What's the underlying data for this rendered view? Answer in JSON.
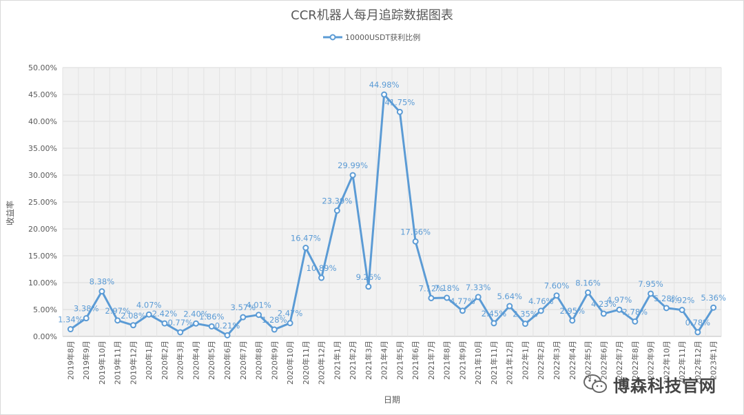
{
  "chart_data": {
    "type": "line",
    "title": "CCR机器人每月追踪数据图表",
    "xlabel": "日期",
    "ylabel": "收益率",
    "ylim": [
      0,
      50
    ],
    "yticks": [
      "0.00%",
      "5.00%",
      "10.00%",
      "15.00%",
      "20.00%",
      "25.00%",
      "30.00%",
      "35.00%",
      "40.00%",
      "45.00%",
      "50.00%"
    ],
    "grid": true,
    "legend_position": "top",
    "categories": [
      "2019年8月",
      "2019年9月",
      "2019年10月",
      "2019年11月",
      "2019年12月",
      "2020年1月",
      "2020年2月",
      "2020年3月",
      "2020年4月",
      "2020年5月",
      "2020年6月",
      "2020年7月",
      "2020年8月",
      "2020年9月",
      "2020年10月",
      "2020年11月",
      "2020年12月",
      "2021年1月",
      "2021年2月",
      "2021年3月",
      "2021年4月",
      "2021年5月",
      "2021年6月",
      "2021年7月",
      "2021年8月",
      "2021年9月",
      "2021年10月",
      "2021年11月",
      "2021年12月",
      "2022年1月",
      "2022年2月",
      "2022年3月",
      "2022年4月",
      "2022年5月",
      "2022年6月",
      "2022年7月",
      "2022年8月",
      "2022年9月",
      "2022年10月",
      "2022年11月",
      "2022年12月",
      "2023年1月"
    ],
    "series": [
      {
        "name": "10000USDT获利比例",
        "color": "#5b9bd5",
        "values": [
          1.34,
          3.38,
          8.38,
          2.97,
          2.08,
          4.07,
          2.42,
          0.77,
          2.4,
          1.86,
          0.21,
          3.57,
          4.01,
          1.28,
          2.47,
          16.47,
          10.89,
          23.39,
          29.99,
          9.26,
          44.98,
          41.75,
          17.66,
          7.12,
          7.18,
          4.77,
          7.33,
          2.45,
          5.64,
          2.35,
          4.76,
          7.6,
          2.95,
          8.16,
          4.23,
          4.97,
          2.78,
          7.95,
          5.28,
          4.92,
          0.78,
          5.36
        ],
        "labels": [
          "1.34%",
          "3.38%",
          "8.38%",
          "2.97%",
          "2.08%",
          "4.07%",
          "2.42%",
          "0.77%",
          "2.40%",
          "1.86%",
          "0.21%",
          "3.57%",
          "4.01%",
          "1.28%",
          "2.47%",
          "16.47%",
          "10.89%",
          "23.39%",
          "29.99%",
          "9.26%",
          "44.98%",
          "41.75%",
          "17.66%",
          "7.12%",
          "7.18%",
          "4.77%",
          "7.33%",
          "2.45%",
          "5.64%",
          "2.35%",
          "4.76%",
          "7.60%",
          "2.95%",
          "8.16%",
          "4.23%",
          "4.97%",
          "2.78%",
          "7.95%",
          "5.28%",
          "4.92%",
          "0.78%",
          "5.36%"
        ]
      }
    ]
  },
  "watermark": {
    "text": "博森科技官网",
    "icon": "wechat-icon"
  }
}
